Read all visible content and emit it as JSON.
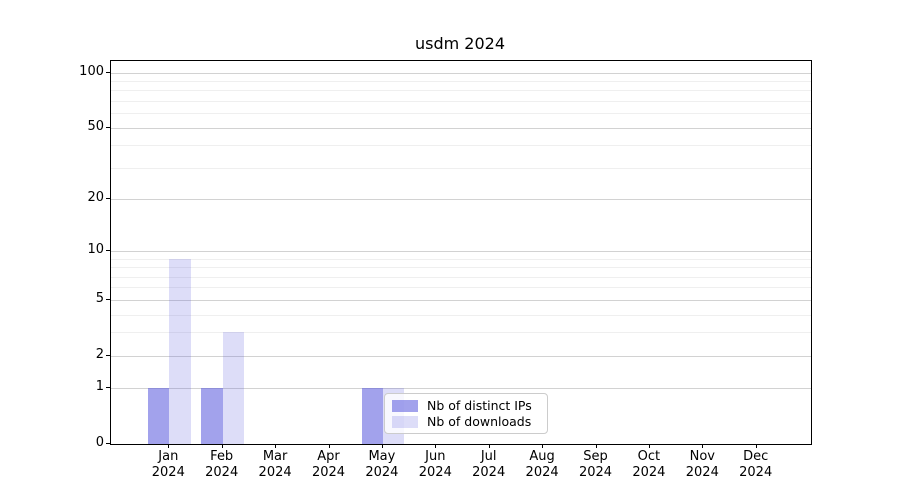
{
  "title": "usdm 2024",
  "chart_data": {
    "type": "bar",
    "title": "usdm 2024",
    "yscale": "log1p",
    "ylim": [
      0,
      116
    ],
    "grid": true,
    "legend_position": "inside lower center",
    "x_tick_labels": [
      {
        "month": "Jan",
        "year": "2024"
      },
      {
        "month": "Feb",
        "year": "2024"
      },
      {
        "month": "Mar",
        "year": "2024"
      },
      {
        "month": "Apr",
        "year": "2024"
      },
      {
        "month": "May",
        "year": "2024"
      },
      {
        "month": "Jun",
        "year": "2024"
      },
      {
        "month": "Jul",
        "year": "2024"
      },
      {
        "month": "Aug",
        "year": "2024"
      },
      {
        "month": "Sep",
        "year": "2024"
      },
      {
        "month": "Oct",
        "year": "2024"
      },
      {
        "month": "Nov",
        "year": "2024"
      },
      {
        "month": "Dec",
        "year": "2024"
      }
    ],
    "y_ticks": [
      0,
      1,
      2,
      5,
      10,
      20,
      50,
      100
    ],
    "y_major_gridlines": [
      1,
      2,
      5,
      10,
      20,
      50,
      100
    ],
    "y_minor_gridlines": [
      3,
      4,
      6,
      7,
      8,
      9,
      30,
      40,
      60,
      70,
      80,
      90
    ],
    "series": [
      {
        "name": "Nb of distinct IPs",
        "color": "rgba(85,85,221,0.55)",
        "values": [
          1,
          1,
          0,
          0,
          1,
          0,
          0,
          0,
          0,
          0,
          0,
          0
        ]
      },
      {
        "name": "Nb of downloads",
        "color": "rgba(85,85,221,0.20)",
        "values": [
          9,
          3,
          0,
          0,
          1,
          0,
          0,
          0,
          0,
          0,
          0,
          0
        ]
      }
    ],
    "colors": {
      "axis": "#000000",
      "text": "#000000",
      "grid_major": "#d2d2d2",
      "grid_minor": "#efefef",
      "legend_border": "#cccccc",
      "legend_background": "rgba(255,255,255,0.8)"
    }
  }
}
